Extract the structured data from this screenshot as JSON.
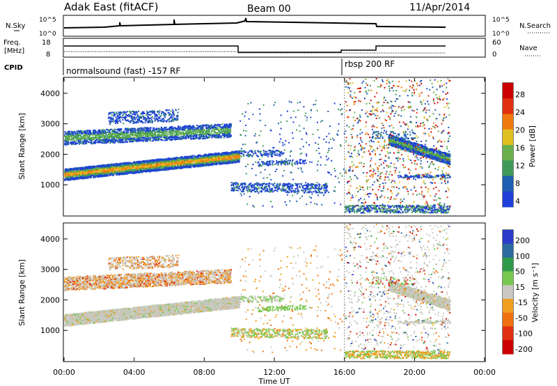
{
  "header": {
    "station": "Adak East (fitACF)",
    "beam": "Beam 00",
    "date": "11/Apr/2014"
  },
  "noise_panel": {
    "left_label": "N.Sky",
    "left_ticks": [
      "10^5",
      "10^0"
    ],
    "right_label": "N.Search",
    "right_ticks": [
      "10^5",
      "10^0"
    ]
  },
  "freq_panel": {
    "left_label_1": "Freq.",
    "left_label_2": "[MHz]",
    "left_ticks": [
      "18",
      "8"
    ],
    "right_label": "Nave",
    "right_ticks": [
      "60",
      "0"
    ]
  },
  "cpid": {
    "label": "CPID",
    "modes": [
      {
        "name": "normalsound (fast) -157 RF",
        "start_hour": 0
      },
      {
        "name": "rbsp 200 RF",
        "start_hour": 16
      }
    ]
  },
  "colors": {
    "power": [
      "#1f3fd8",
      "#1d5fb0",
      "#3f9a5a",
      "#6ab04a",
      "#e0c020",
      "#f07a10",
      "#e03010",
      "#cc0000"
    ],
    "velocity": [
      "#2a3cc8",
      "#2c6aa0",
      "#2f9a4a",
      "#78c850",
      "#c8c8c0",
      "#f0a020",
      "#f07010",
      "#e03010",
      "#cc0000"
    ]
  },
  "chart_data": [
    {
      "type": "heatmap",
      "name": "power",
      "xlabel": "Time UT",
      "ylabel": "Slant Range [km]",
      "xlim": [
        0,
        24
      ],
      "ylim": [
        0,
        4500
      ],
      "yticks": [
        "1000",
        "2000",
        "3000",
        "4000"
      ],
      "colorbar_label": "Power [dB]",
      "colorbar_ticks": [
        "4",
        "8",
        "12",
        "16",
        "20",
        "24",
        "28"
      ],
      "features": [
        {
          "desc": "main band",
          "t0": 0,
          "t1": 10,
          "r0": 1250,
          "r1": 1800,
          "peak_db": 24
        },
        {
          "desc": "upper band",
          "t0": 0,
          "t1": 9.5,
          "r0": 2400,
          "r1": 3100,
          "peak_db": 14
        },
        {
          "desc": "evening band",
          "t0": 18.5,
          "t1": 22,
          "r0": 1700,
          "r1": 2400,
          "peak_db": 14
        }
      ]
    },
    {
      "type": "heatmap",
      "name": "velocity",
      "xlabel": "Time UT",
      "ylabel": "Slant Range [km]",
      "xlim": [
        0,
        24
      ],
      "ylim": [
        0,
        4500
      ],
      "yticks": [
        "1000",
        "2000",
        "3000",
        "4000"
      ],
      "colorbar_label": "Velocity [m s⁻¹]",
      "colorbar_ticks": [
        "200",
        "100",
        "50",
        "15",
        "-15",
        "-50",
        "-100",
        "-200"
      ],
      "xticks": [
        "00:00",
        "04:00",
        "08:00",
        "12:00",
        "16:00",
        "20:00",
        "00:00"
      ]
    }
  ]
}
